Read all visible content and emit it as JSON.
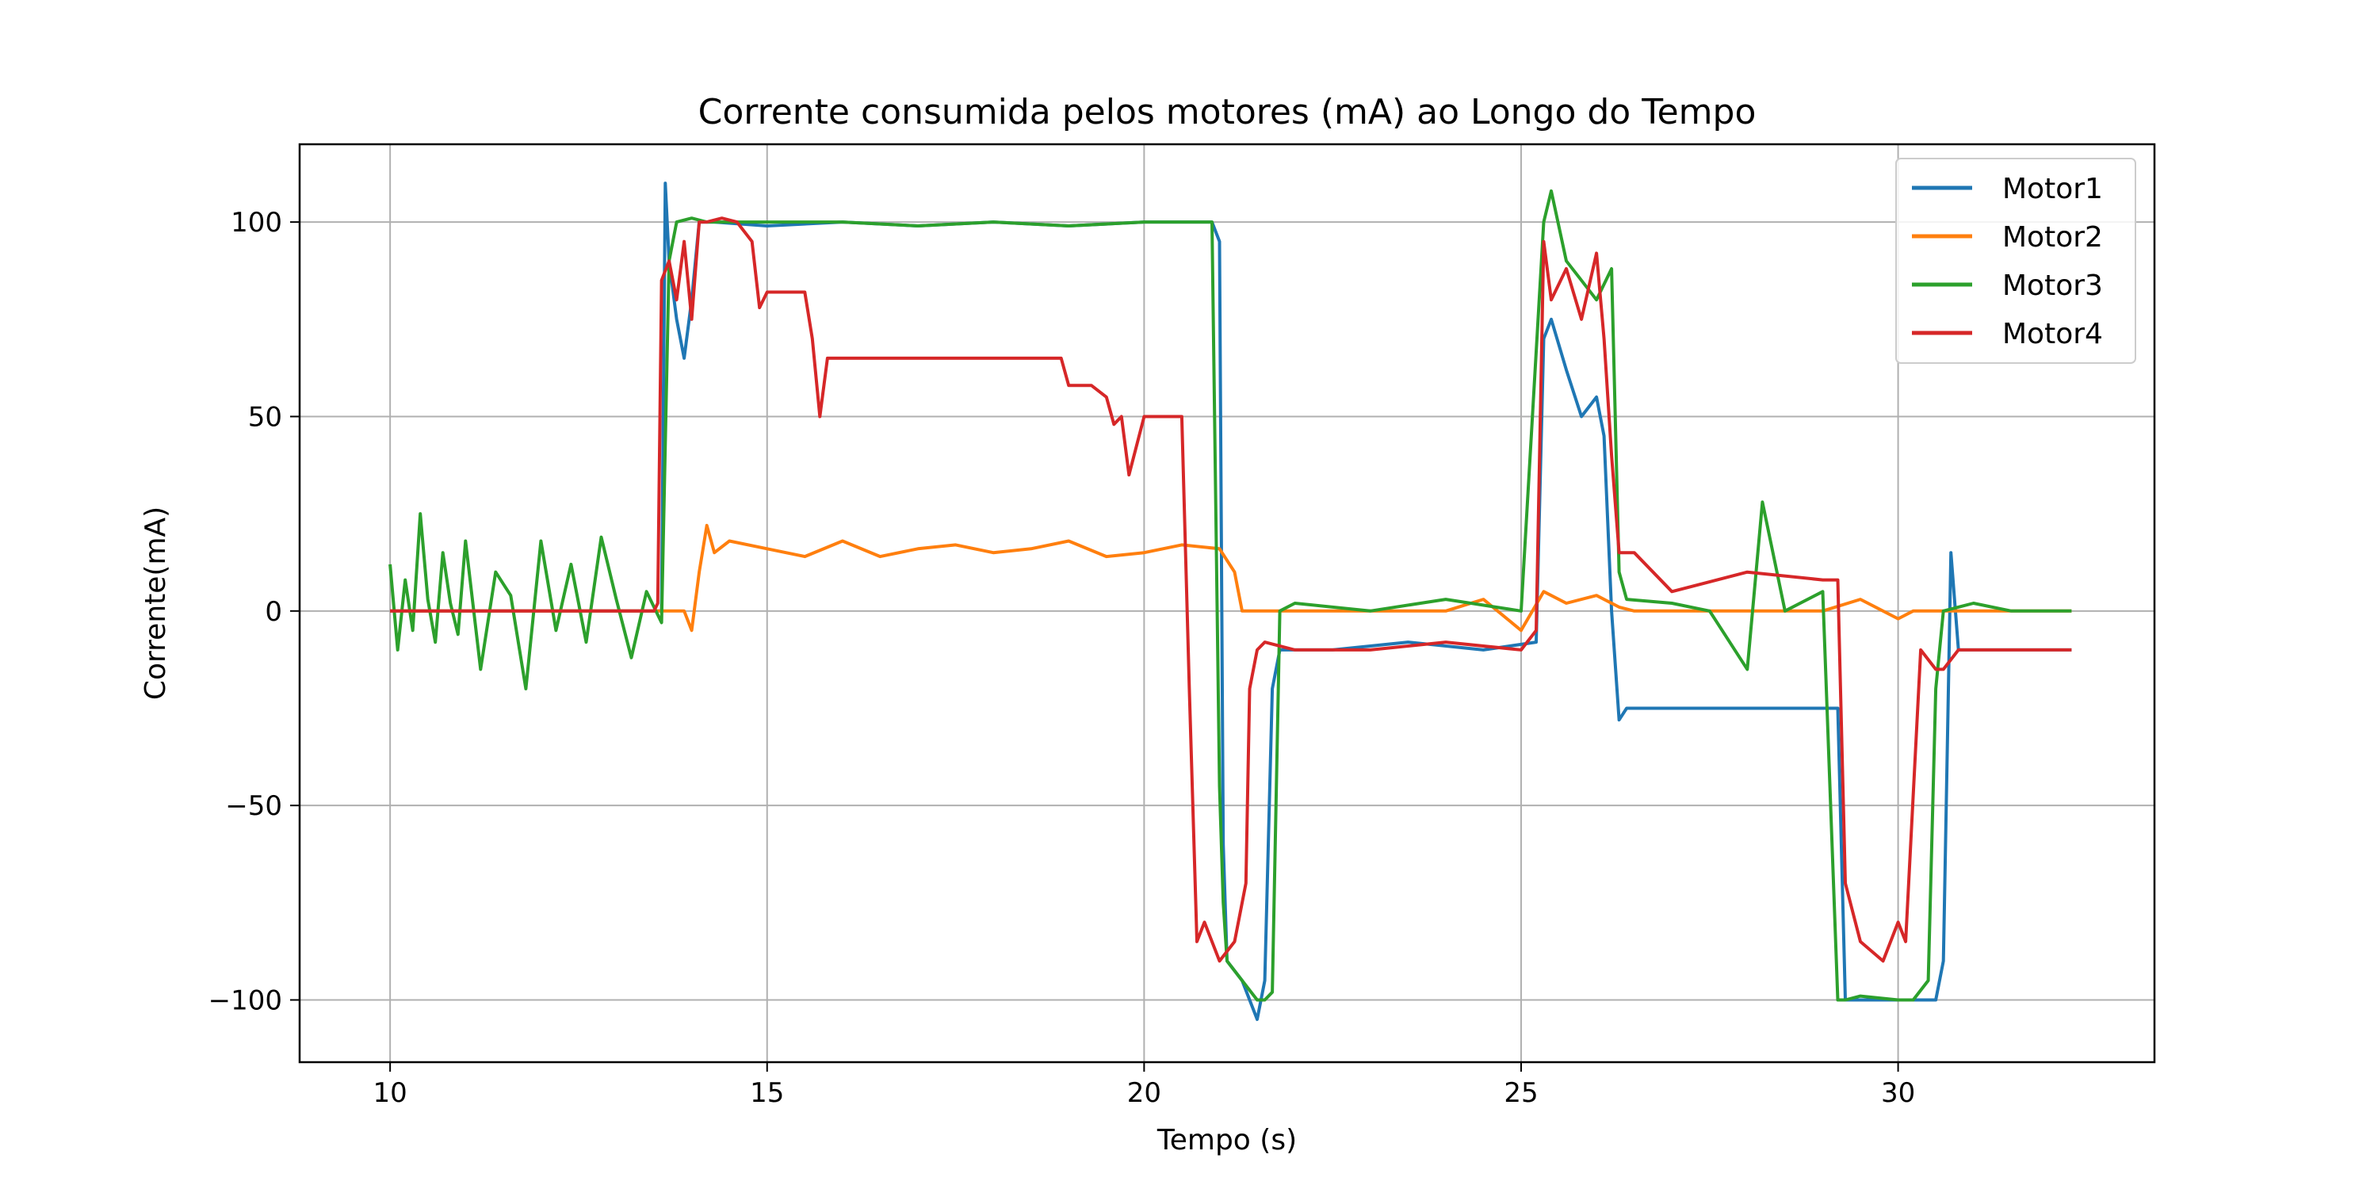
{
  "chart_data": {
    "type": "line",
    "title": "Corrente consumida pelos motores (mA) ao Longo do Tempo",
    "xlabel": "Tempo (s)",
    "ylabel": "Corrente(mA)",
    "xlim": [
      8.8,
      33.4
    ],
    "ylim": [
      -116,
      120
    ],
    "xticks": [
      10,
      15,
      20,
      25,
      30
    ],
    "yticks": [
      -100,
      -50,
      0,
      50,
      100
    ],
    "ytick_labels": [
      "−100",
      "−50",
      "0",
      "50",
      "100"
    ],
    "grid": true,
    "legend_position": "top-right",
    "series": [
      {
        "name": "Motor1",
        "color": "#1f77b4",
        "x": [
          10.0,
          13.6,
          13.65,
          13.7,
          13.8,
          13.9,
          14.0,
          14.1,
          14.2,
          14.3,
          15.0,
          16.0,
          17.0,
          18.0,
          19.0,
          20.0,
          20.9,
          21.0,
          21.05,
          21.1,
          21.3,
          21.5,
          21.6,
          21.7,
          21.8,
          22.5,
          23.5,
          24.5,
          25.2,
          25.3,
          25.4,
          25.6,
          25.8,
          26.0,
          26.1,
          26.2,
          26.3,
          26.4,
          27.0,
          28.0,
          29.2,
          29.3,
          29.5,
          30.0,
          30.5,
          30.6,
          30.7,
          30.8,
          31.5,
          32.3
        ],
        "y": [
          0,
          0,
          110,
          90,
          75,
          65,
          80,
          100,
          100,
          100,
          99,
          100,
          99,
          100,
          99,
          100,
          100,
          95,
          -60,
          -90,
          -95,
          -105,
          -95,
          -20,
          -10,
          -10,
          -8,
          -10,
          -8,
          70,
          75,
          62,
          50,
          55,
          45,
          0,
          -28,
          -25,
          -25,
          -25,
          -25,
          -100,
          -100,
          -100,
          -100,
          -90,
          15,
          -10,
          -10,
          -10
        ]
      },
      {
        "name": "Motor2",
        "color": "#ff7f0e",
        "x": [
          10.0,
          13.9,
          14.0,
          14.1,
          14.2,
          14.3,
          14.5,
          15.0,
          15.5,
          16.0,
          16.5,
          17.0,
          17.5,
          18.0,
          18.5,
          19.0,
          19.5,
          20.0,
          20.5,
          21.0,
          21.2,
          21.3,
          22.0,
          23.0,
          24.0,
          24.5,
          25.0,
          25.3,
          25.6,
          26.0,
          26.3,
          26.5,
          27.0,
          28.0,
          29.0,
          29.5,
          30.0,
          30.2,
          30.5,
          31.0,
          32.3
        ],
        "y": [
          0,
          0,
          -5,
          10,
          22,
          15,
          18,
          16,
          14,
          18,
          14,
          16,
          17,
          15,
          16,
          18,
          14,
          15,
          17,
          16,
          10,
          0,
          0,
          0,
          0,
          3,
          -5,
          5,
          2,
          4,
          1,
          0,
          0,
          0,
          0,
          3,
          -2,
          0,
          0,
          0,
          0
        ]
      },
      {
        "name": "Motor3",
        "color": "#2ca02c",
        "x": [
          10.0,
          10.1,
          10.2,
          10.3,
          10.4,
          10.5,
          10.6,
          10.7,
          10.8,
          10.9,
          11.0,
          11.2,
          11.4,
          11.6,
          11.8,
          12.0,
          12.2,
          12.4,
          12.6,
          12.8,
          13.0,
          13.2,
          13.4,
          13.6,
          13.7,
          13.8,
          14.0,
          14.2,
          15.0,
          16.0,
          17.0,
          18.0,
          19.0,
          20.0,
          20.9,
          21.0,
          21.05,
          21.1,
          21.3,
          21.5,
          21.6,
          21.7,
          21.8,
          22.0,
          23.0,
          24.0,
          25.0,
          25.3,
          25.4,
          25.6,
          25.8,
          26.0,
          26.2,
          26.3,
          26.4,
          27.0,
          27.5,
          28.0,
          28.2,
          28.5,
          29.0,
          29.2,
          29.3,
          29.5,
          30.0,
          30.2,
          30.4,
          30.5,
          30.6,
          31.0,
          31.5,
          32.3
        ],
        "y": [
          12,
          -10,
          8,
          -5,
          25,
          3,
          -8,
          15,
          2,
          -6,
          18,
          -15,
          10,
          4,
          -20,
          18,
          -5,
          12,
          -8,
          19,
          3,
          -12,
          5,
          -3,
          90,
          100,
          101,
          100,
          100,
          100,
          99,
          100,
          99,
          100,
          100,
          -45,
          -75,
          -90,
          -95,
          -100,
          -100,
          -98,
          0,
          2,
          0,
          3,
          0,
          100,
          108,
          90,
          85,
          80,
          88,
          10,
          3,
          2,
          0,
          -15,
          28,
          0,
          5,
          -100,
          -100,
          -99,
          -100,
          -100,
          -95,
          -20,
          0,
          2,
          0,
          0
        ]
      },
      {
        "name": "Motor4",
        "color": "#d62728",
        "x": [
          10.0,
          13.5,
          13.55,
          13.6,
          13.7,
          13.8,
          13.9,
          14.0,
          14.1,
          14.2,
          14.4,
          14.6,
          14.8,
          14.9,
          15.0,
          15.5,
          15.6,
          15.7,
          15.8,
          16.0,
          17.0,
          18.0,
          18.9,
          19.0,
          19.3,
          19.5,
          19.6,
          19.7,
          19.8,
          20.0,
          20.5,
          20.6,
          20.7,
          20.8,
          21.0,
          21.2,
          21.35,
          21.4,
          21.5,
          21.6,
          22.0,
          23.0,
          24.0,
          25.0,
          25.2,
          25.3,
          25.4,
          25.6,
          25.8,
          26.0,
          26.1,
          26.2,
          26.3,
          26.5,
          27.0,
          28.0,
          29.0,
          29.2,
          29.3,
          29.5,
          29.8,
          30.0,
          30.1,
          30.3,
          30.5,
          30.6,
          30.8,
          31.0,
          31.5,
          32.3
        ],
        "y": [
          0,
          0,
          2,
          85,
          90,
          80,
          95,
          75,
          100,
          100,
          101,
          100,
          95,
          78,
          82,
          82,
          70,
          50,
          65,
          65,
          65,
          65,
          65,
          58,
          58,
          55,
          48,
          50,
          35,
          50,
          50,
          -20,
          -85,
          -80,
          -90,
          -85,
          -70,
          -20,
          -10,
          -8,
          -10,
          -10,
          -8,
          -10,
          -5,
          95,
          80,
          88,
          75,
          92,
          70,
          40,
          15,
          15,
          5,
          10,
          8,
          8,
          -70,
          -85,
          -90,
          -80,
          -85,
          -10,
          -15,
          -15,
          -10,
          -10,
          -10,
          -10
        ]
      }
    ]
  }
}
